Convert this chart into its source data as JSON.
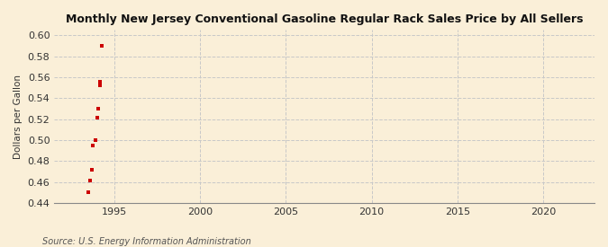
{
  "title": "Monthly New Jersey Conventional Gasoline Regular Rack Sales Price by All Sellers",
  "ylabel": "Dollars per Gallon",
  "source": "Source: U.S. Energy Information Administration",
  "background_color": "#faefd8",
  "data_color": "#cc0000",
  "xlim": [
    1991.5,
    2023
  ],
  "ylim": [
    0.44,
    0.605
  ],
  "yticks": [
    0.44,
    0.46,
    0.48,
    0.5,
    0.52,
    0.54,
    0.56,
    0.58,
    0.6
  ],
  "xticks": [
    1995,
    2000,
    2005,
    2010,
    2015,
    2020
  ],
  "grid_color": "#c8c8c8",
  "x_data": [
    1993.5,
    1993.58,
    1993.67,
    1993.75,
    1993.92,
    1994.0,
    1994.08,
    1994.17,
    1994.17,
    1994.25
  ],
  "y_data": [
    0.45,
    0.461,
    0.472,
    0.495,
    0.5,
    0.521,
    0.53,
    0.552,
    0.556,
    0.59
  ]
}
